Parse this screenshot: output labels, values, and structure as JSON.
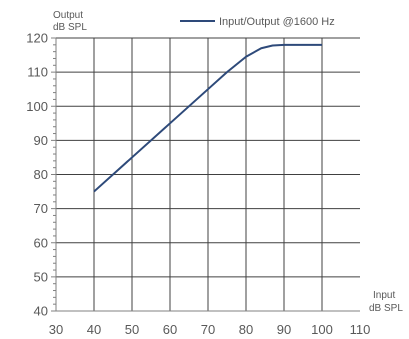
{
  "chart_data": {
    "type": "line",
    "title": "",
    "ylabel_lines": [
      "Output",
      "dB SPL"
    ],
    "xlabel_lines": [
      "Input",
      "dB SPL"
    ],
    "xlim": [
      30,
      110
    ],
    "ylim": [
      40,
      120
    ],
    "xticks": [
      30,
      40,
      50,
      60,
      70,
      80,
      90,
      100,
      110
    ],
    "yticks": [
      40,
      50,
      60,
      70,
      80,
      90,
      100,
      110,
      120
    ],
    "grid": true,
    "legend_position": "top-right",
    "series": [
      {
        "name": "Input/Output @1600 Hz",
        "color": "#2e4a7a",
        "x": [
          40,
          50,
          60,
          70,
          75,
          80,
          84,
          87,
          90,
          95,
          100
        ],
        "y": [
          75,
          85,
          95,
          105,
          110,
          114.5,
          117,
          117.8,
          118,
          118,
          118
        ]
      }
    ]
  }
}
